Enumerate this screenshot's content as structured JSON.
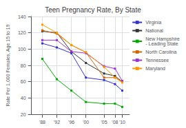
{
  "chart_data": {
    "type": "line",
    "title": "Teen Pregnancy Rate, By State",
    "ylabel": "Rate Per 1,000 Females, Age 15 to 19",
    "x": [
      1988,
      1992,
      1996,
      2000,
      2005,
      2008,
      2010
    ],
    "series": [
      {
        "name": "Virginia",
        "color": "#3333cc",
        "values": [
          107,
          102,
          95,
          65,
          62,
          57,
          49
        ]
      },
      {
        "name": "National",
        "color": "#333333",
        "values": [
          122,
          120,
          97,
          83,
          70,
          67,
          60
        ]
      },
      {
        "name": "New Hampshire\n- Leading State",
        "color": "#00aa00",
        "values": [
          88,
          63,
          49,
          35,
          33,
          33,
          29
        ]
      },
      {
        "name": "North Carolina",
        "color": "#cc6600",
        "values": [
          123,
          119,
          105,
          96,
          65,
          65,
          60
        ]
      },
      {
        "name": "Tennessee",
        "color": "#9933cc",
        "values": [
          111,
          111,
          97,
          95,
          79,
          76,
          61
        ]
      },
      {
        "name": "Maryland",
        "color": "#ff9900",
        "values": [
          130,
          120,
          105,
          96,
          78,
          65,
          59
        ]
      }
    ],
    "xlim": [
      1985,
      2012
    ],
    "xticks": [
      {
        "value": 1988,
        "label": "'88"
      },
      {
        "value": 1992,
        "label": "'92"
      },
      {
        "value": 1996,
        "label": "'96"
      },
      {
        "value": 2000,
        "label": "'00"
      },
      {
        "value": 2005,
        "label": "'05"
      },
      {
        "value": 2008,
        "label": "'08"
      },
      {
        "value": 2010,
        "label": "'10"
      }
    ],
    "ylim": [
      20,
      140
    ],
    "yticks": [
      20,
      40,
      60,
      80,
      100,
      120,
      140
    ],
    "grid": true,
    "legend": "right",
    "marker": "square"
  }
}
